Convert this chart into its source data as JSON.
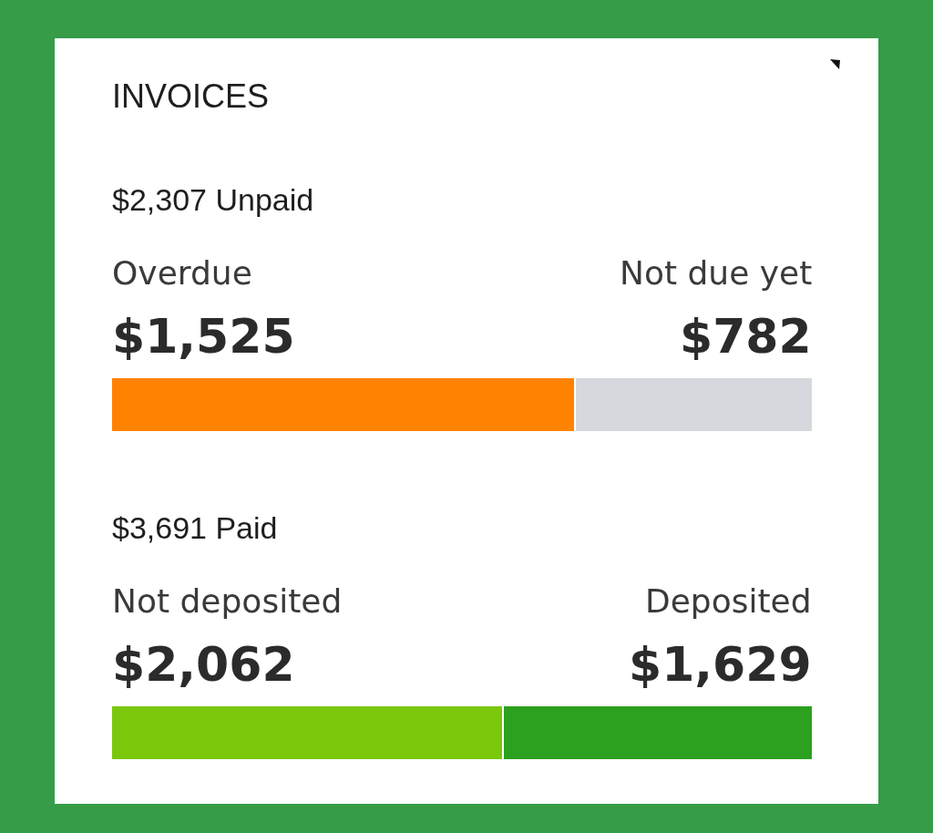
{
  "chart_data": [
    {
      "type": "bar",
      "title": "INVOICES",
      "subtitle": "$2,307 Unpaid",
      "orientation": "horizontal",
      "stacked": true,
      "categories": [
        null
      ],
      "tick_labels": false,
      "series": [
        {
          "name": "Overdue",
          "color": "#ff8200",
          "values": [
            1525
          ],
          "value_labels": [
            "$1,525"
          ]
        },
        {
          "name": "Not due yet",
          "color": "#d5d8dc",
          "values": [
            782
          ],
          "value_labels": [
            "$782"
          ]
        }
      ]
    },
    {
      "type": "bar",
      "subtitle": "$3,691 Paid",
      "orientation": "horizontal",
      "stacked": true,
      "categories": [
        null
      ],
      "tick_labels": false,
      "series": [
        {
          "name": "Not deposited",
          "color": "#7ac70c",
          "values": [
            2062
          ],
          "value_labels": [
            "$2,062"
          ]
        },
        {
          "name": "Deposited",
          "color": "#2ca01f",
          "values": [
            1629
          ],
          "value_labels": [
            "$1,629"
          ]
        }
      ]
    }
  ]
}
